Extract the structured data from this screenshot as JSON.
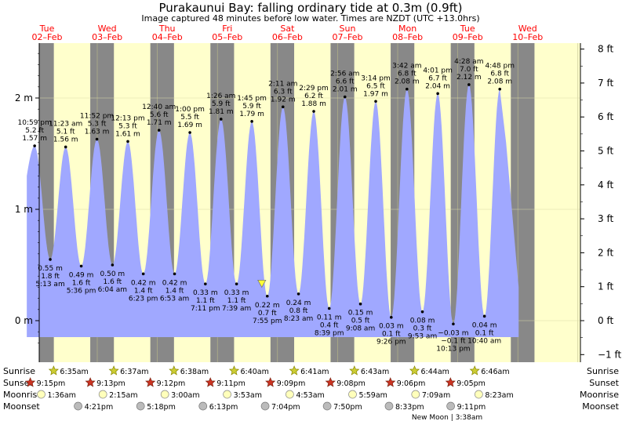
{
  "title": "Purakaunui Bay: falling  ordinary tide at 0.3m (0.9ft)",
  "subtitle": "Image captured 48 minutes before low water. Times are NZDT (UTC +13.0hrs)",
  "colors": {
    "day": "#ffffcc",
    "night": "#888888",
    "water": "#a0a8ff",
    "daylabel": "#ff0000",
    "marker": "#ffff33"
  },
  "chart_data": {
    "type": "area",
    "y_left_ticks": [
      {
        "v": 0,
        "label": "0 m"
      },
      {
        "v": 1,
        "label": "1 m"
      },
      {
        "v": 2,
        "label": "2 m"
      }
    ],
    "y_right_ticks": [
      {
        "v": -1,
        "label": "−1 ft"
      },
      {
        "v": 0,
        "label": "0 ft"
      },
      {
        "v": 1,
        "label": "1 ft"
      },
      {
        "v": 2,
        "label": "2 ft"
      },
      {
        "v": 3,
        "label": "3 ft"
      },
      {
        "v": 4,
        "label": "4 ft"
      },
      {
        "v": 5,
        "label": "5 ft"
      },
      {
        "v": 6,
        "label": "6 ft"
      },
      {
        "v": 7,
        "label": "7 ft"
      },
      {
        "v": 8,
        "label": "8 ft"
      }
    ],
    "days": [
      {
        "dow": "Tue",
        "date": "02–Feb"
      },
      {
        "dow": "Wed",
        "date": "03–Feb"
      },
      {
        "dow": "Thu",
        "date": "04–Feb"
      },
      {
        "dow": "Fri",
        "date": "05–Feb"
      },
      {
        "dow": "Sat",
        "date": "06–Feb"
      },
      {
        "dow": "Sun",
        "date": "07–Feb"
      },
      {
        "dow": "Mon",
        "date": "08–Feb"
      },
      {
        "dow": "Tue",
        "date": "09–Feb"
      },
      {
        "dow": "Wed",
        "date": "10–Feb"
      }
    ],
    "tides": [
      {
        "kind": "high",
        "time": "10:59 pm",
        "m": 1.57,
        "ft": "5.2 ft",
        "mlabel": "1.57 m"
      },
      {
        "kind": "low",
        "time": "5:13 am",
        "m": 0.55,
        "ft": "1.8 ft",
        "mlabel": "0.55 m"
      },
      {
        "kind": "high",
        "time": "11:23 am",
        "m": 1.56,
        "ft": "5.1 ft",
        "mlabel": "1.56 m"
      },
      {
        "kind": "low",
        "time": "5:36 pm",
        "m": 0.49,
        "ft": "1.6 ft",
        "mlabel": "0.49 m"
      },
      {
        "kind": "high",
        "time": "11:52 pm",
        "m": 1.63,
        "ft": "5.3 ft",
        "mlabel": "1.63 m"
      },
      {
        "kind": "low",
        "time": "6:04 am",
        "m": 0.5,
        "ft": "1.6 ft",
        "mlabel": "0.50 m"
      },
      {
        "kind": "high",
        "time": "12:13 pm",
        "m": 1.61,
        "ft": "5.3 ft",
        "mlabel": "1.61 m"
      },
      {
        "kind": "low",
        "time": "6:23 pm",
        "m": 0.42,
        "ft": "1.4 ft",
        "mlabel": "0.42 m"
      },
      {
        "kind": "high",
        "time": "12:40 am",
        "m": 1.71,
        "ft": "5.6 ft",
        "mlabel": "1.71 m"
      },
      {
        "kind": "low",
        "time": "6:53 am",
        "m": 0.42,
        "ft": "1.4 ft",
        "mlabel": "0.42 m"
      },
      {
        "kind": "high",
        "time": "1:00 pm",
        "m": 1.69,
        "ft": "5.5 ft",
        "mlabel": "1.69 m"
      },
      {
        "kind": "low",
        "time": "7:11 pm",
        "m": 0.33,
        "ft": "1.1 ft",
        "mlabel": "0.33 m"
      },
      {
        "kind": "high",
        "time": "1:26 am",
        "m": 1.81,
        "ft": "5.9 ft",
        "mlabel": "1.81 m"
      },
      {
        "kind": "low",
        "time": "7:39 am",
        "m": 0.33,
        "ft": "1.1 ft",
        "mlabel": "0.33 m"
      },
      {
        "kind": "high",
        "time": "1:45 pm",
        "m": 1.79,
        "ft": "5.9 ft",
        "mlabel": "1.79 m"
      },
      {
        "kind": "low",
        "time": "7:55 pm",
        "m": 0.22,
        "ft": "0.7 ft",
        "mlabel": "0.22 m"
      },
      {
        "kind": "high",
        "time": "2:11 am",
        "m": 1.92,
        "ft": "6.3 ft",
        "mlabel": "1.92 m"
      },
      {
        "kind": "low",
        "time": "8:23 am",
        "m": 0.24,
        "ft": "0.8 ft",
        "mlabel": "0.24 m"
      },
      {
        "kind": "high",
        "time": "2:29 pm",
        "m": 1.88,
        "ft": "6.2 ft",
        "mlabel": "1.88 m"
      },
      {
        "kind": "low",
        "time": "8:39 pm",
        "m": 0.11,
        "ft": "0.4 ft",
        "mlabel": "0.11 m"
      },
      {
        "kind": "high",
        "time": "2:56 am",
        "m": 2.01,
        "ft": "6.6 ft",
        "mlabel": "2.01 m"
      },
      {
        "kind": "low",
        "time": "9:08 am",
        "m": 0.15,
        "ft": "0.5 ft",
        "mlabel": "0.15 m"
      },
      {
        "kind": "high",
        "time": "3:14 pm",
        "m": 1.97,
        "ft": "6.5 ft",
        "mlabel": "1.97 m"
      },
      {
        "kind": "low",
        "time": "9:26 pm",
        "m": 0.03,
        "ft": "0.1 ft",
        "mlabel": "0.03 m"
      },
      {
        "kind": "high",
        "time": "3:42 am",
        "m": 2.08,
        "ft": "6.8 ft",
        "mlabel": "2.08 m"
      },
      {
        "kind": "low",
        "time": "9:53 am",
        "m": 0.08,
        "ft": "0.3 ft",
        "mlabel": "0.08 m"
      },
      {
        "kind": "high",
        "time": "4:01 pm",
        "m": 2.04,
        "ft": "6.7 ft",
        "mlabel": "2.04 m"
      },
      {
        "kind": "low",
        "time": "10:13 pm",
        "m": -0.03,
        "ft": "−0.1 ft",
        "mlabel": "−0.03 m"
      },
      {
        "kind": "high",
        "time": "4:28 am",
        "m": 2.12,
        "ft": "7.0 ft",
        "mlabel": "2.12 m"
      },
      {
        "kind": "low",
        "time": "10:40 am",
        "m": 0.04,
        "ft": "0.1 ft",
        "mlabel": "0.04 m"
      },
      {
        "kind": "high",
        "time": "4:48 pm",
        "m": 2.08,
        "ft": "6.8 ft",
        "mlabel": "2.08 m"
      }
    ],
    "current_level_m": 0.3
  },
  "rows": {
    "sunrise_label": "Sunrise",
    "sunset_label": "Sunset",
    "moonrise_label": "Moonrise",
    "moonset_label": "Moonset",
    "sunrise": [
      "6:35am",
      "6:37am",
      "6:38am",
      "6:40am",
      "6:41am",
      "6:43am",
      "6:44am",
      "6:46am"
    ],
    "sunset": [
      "9:15pm",
      "9:13pm",
      "9:12pm",
      "9:11pm",
      "9:09pm",
      "9:08pm",
      "9:06pm",
      "9:05pm"
    ],
    "moonrise": [
      "1:36am",
      "2:15am",
      "3:00am",
      "3:53am",
      "4:53am",
      "5:59am",
      "7:09am",
      "8:23am"
    ],
    "moonset": [
      "4:21pm",
      "5:18pm",
      "6:13pm",
      "7:04pm",
      "7:50pm",
      "8:33pm",
      "9:11pm"
    ],
    "new_moon": "New Moon | 3:38am"
  }
}
